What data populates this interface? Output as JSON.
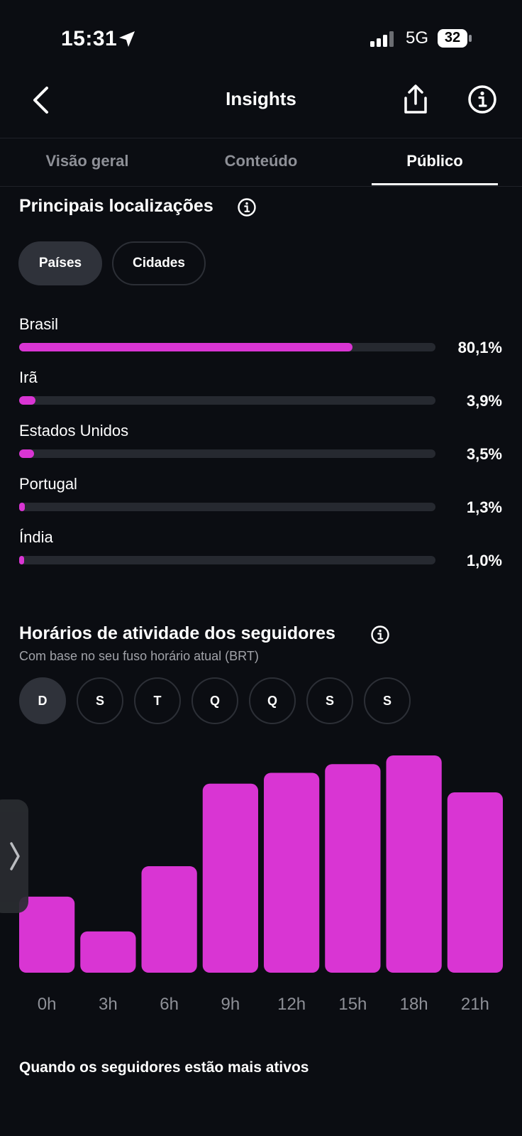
{
  "status_bar": {
    "time": "15:31",
    "network": "5G",
    "battery": "32"
  },
  "header": {
    "title": "Insights"
  },
  "tabs": [
    {
      "label": "Visão geral",
      "active": false
    },
    {
      "label": "Conteúdo",
      "active": false
    },
    {
      "label": "Público",
      "active": true
    }
  ],
  "locations": {
    "title": "Principais localizações",
    "filters": [
      {
        "label": "Países",
        "selected": true
      },
      {
        "label": "Cidades",
        "selected": false
      }
    ],
    "items": [
      {
        "name": "Brasil",
        "percent": "80,1%",
        "value": 80.1
      },
      {
        "name": "Irã",
        "percent": "3,9%",
        "value": 3.9
      },
      {
        "name": "Estados Unidos",
        "percent": "3,5%",
        "value": 3.5
      },
      {
        "name": "Portugal",
        "percent": "1,3%",
        "value": 1.3
      },
      {
        "name": "Índia",
        "percent": "1,0%",
        "value": 1.0
      }
    ]
  },
  "activity": {
    "title": "Horários de atividade dos seguidores",
    "subtitle": "Com base no seu fuso horário atual (BRT)",
    "days": [
      {
        "label": "D",
        "selected": true
      },
      {
        "label": "S",
        "selected": false
      },
      {
        "label": "T",
        "selected": false
      },
      {
        "label": "Q",
        "selected": false
      },
      {
        "label": "Q",
        "selected": false
      },
      {
        "label": "S",
        "selected": false
      },
      {
        "label": "S",
        "selected": false
      }
    ]
  },
  "chart_data": {
    "type": "bar",
    "categories": [
      "0h",
      "3h",
      "6h",
      "9h",
      "12h",
      "15h",
      "18h",
      "21h"
    ],
    "values": [
      35,
      19,
      49,
      87,
      92,
      96,
      100,
      83
    ],
    "ylim": [
      0,
      100
    ],
    "grid": false,
    "bar_color": "#d935d3"
  },
  "footer": {
    "title": "Quando os seguidores estão mais ativos"
  },
  "colors": {
    "accent": "#d935d3",
    "background": "#0b0d12",
    "track": "#262930"
  }
}
